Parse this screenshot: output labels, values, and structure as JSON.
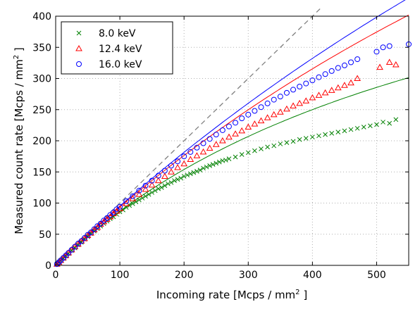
{
  "chart_data": {
    "type": "scatter",
    "xlabel": "Incoming rate [Mcps / mm",
    "xlabel_sup": "2",
    "xlabel_end": " ]",
    "ylabel": "Measured count rate [Mcps / mm",
    "ylabel_sup": "2",
    "ylabel_end": " ]",
    "xlim": [
      0,
      550
    ],
    "ylim": [
      0,
      400
    ],
    "xticks": [
      "0",
      "100",
      "200",
      "300",
      "400",
      "500"
    ],
    "yticks": [
      "0",
      "50",
      "100",
      "150",
      "200",
      "250",
      "300",
      "350",
      "400"
    ],
    "xtick_values": [
      0,
      100,
      200,
      300,
      400,
      500
    ],
    "ytick_values": [
      0,
      50,
      100,
      150,
      200,
      250,
      300,
      350,
      400
    ],
    "grid": true,
    "legend_position": "top-left",
    "identity_line": {
      "style": "dashed",
      "color": "#808080",
      "x": [
        0,
        415
      ],
      "y": [
        0,
        415
      ]
    },
    "series": [
      {
        "name": "8.0 keV",
        "marker": "x",
        "color": "#008000",
        "fit_tau": 0.0015,
        "x": [
          2,
          5,
          8,
          12,
          16,
          20,
          25,
          30,
          35,
          40,
          45,
          50,
          55,
          60,
          65,
          70,
          75,
          80,
          85,
          90,
          95,
          100,
          105,
          110,
          115,
          120,
          125,
          130,
          135,
          140,
          145,
          150,
          155,
          160,
          165,
          170,
          175,
          180,
          185,
          190,
          195,
          200,
          205,
          210,
          215,
          220,
          225,
          230,
          235,
          240,
          245,
          250,
          255,
          260,
          265,
          270,
          280,
          290,
          300,
          310,
          320,
          330,
          340,
          350,
          360,
          370,
          380,
          390,
          400,
          410,
          420,
          430,
          440,
          450,
          460,
          470,
          480,
          490,
          500,
          510,
          520,
          530
        ],
        "y": [
          2,
          5,
          8,
          11,
          15,
          19,
          24,
          28,
          33,
          37,
          42,
          46,
          51,
          55,
          59,
          63,
          67,
          71,
          75,
          78,
          82,
          86,
          89,
          93,
          96,
          99,
          102,
          105,
          108,
          111,
          114,
          117,
          120,
          123,
          125,
          128,
          131,
          133,
          136,
          138,
          140,
          143,
          145,
          147,
          149,
          151,
          153,
          156,
          158,
          160,
          162,
          164,
          166,
          168,
          169,
          171,
          174,
          178,
          181,
          184,
          187,
          190,
          192,
          195,
          197,
          199,
          202,
          204,
          206,
          208,
          210,
          212,
          214,
          216,
          218,
          220,
          222,
          224,
          226,
          230,
          228,
          234
        ]
      },
      {
        "name": "12.4 keV",
        "marker": "triangle",
        "color": "#ff0000",
        "fit_tau": 0.00067,
        "x": [
          2,
          5,
          8,
          12,
          16,
          20,
          25,
          30,
          35,
          40,
          45,
          50,
          55,
          60,
          65,
          70,
          75,
          80,
          85,
          90,
          95,
          100,
          110,
          120,
          130,
          140,
          150,
          160,
          170,
          180,
          190,
          200,
          210,
          220,
          230,
          240,
          250,
          260,
          270,
          280,
          290,
          300,
          310,
          320,
          330,
          340,
          350,
          360,
          370,
          380,
          390,
          400,
          410,
          420,
          430,
          440,
          450,
          460,
          470,
          505,
          520,
          530
        ],
        "y": [
          2,
          5,
          8,
          12,
          16,
          20,
          25,
          30,
          34,
          39,
          43,
          48,
          52,
          57,
          61,
          66,
          70,
          74,
          78,
          83,
          87,
          91,
          99,
          107,
          114,
          122,
          129,
          136,
          143,
          150,
          157,
          163,
          170,
          176,
          182,
          188,
          194,
          200,
          206,
          211,
          216,
          222,
          227,
          232,
          237,
          242,
          246,
          251,
          256,
          260,
          264,
          269,
          273,
          277,
          281,
          285,
          289,
          293,
          300,
          318,
          326,
          322
        ]
      },
      {
        "name": "16.0 keV",
        "marker": "circle",
        "color": "#0000ff",
        "fit_tau": 0.00051,
        "x": [
          2,
          5,
          8,
          12,
          16,
          20,
          25,
          30,
          35,
          40,
          45,
          50,
          55,
          60,
          65,
          70,
          75,
          80,
          85,
          90,
          95,
          100,
          110,
          120,
          130,
          140,
          150,
          160,
          170,
          180,
          190,
          200,
          210,
          220,
          230,
          240,
          250,
          260,
          270,
          280,
          290,
          300,
          310,
          320,
          330,
          340,
          350,
          360,
          370,
          380,
          390,
          400,
          410,
          420,
          430,
          440,
          450,
          460,
          470,
          500,
          510,
          520,
          550
        ],
        "y": [
          2,
          5,
          8,
          12,
          16,
          20,
          25,
          30,
          35,
          39,
          44,
          49,
          53,
          58,
          63,
          67,
          72,
          76,
          81,
          85,
          90,
          94,
          103,
          111,
          120,
          128,
          136,
          144,
          152,
          160,
          167,
          175,
          182,
          189,
          196,
          203,
          210,
          217,
          223,
          229,
          236,
          242,
          248,
          254,
          260,
          266,
          271,
          277,
          282,
          287,
          292,
          297,
          302,
          307,
          312,
          317,
          321,
          326,
          331,
          343,
          350,
          352,
          355
        ]
      }
    ]
  }
}
